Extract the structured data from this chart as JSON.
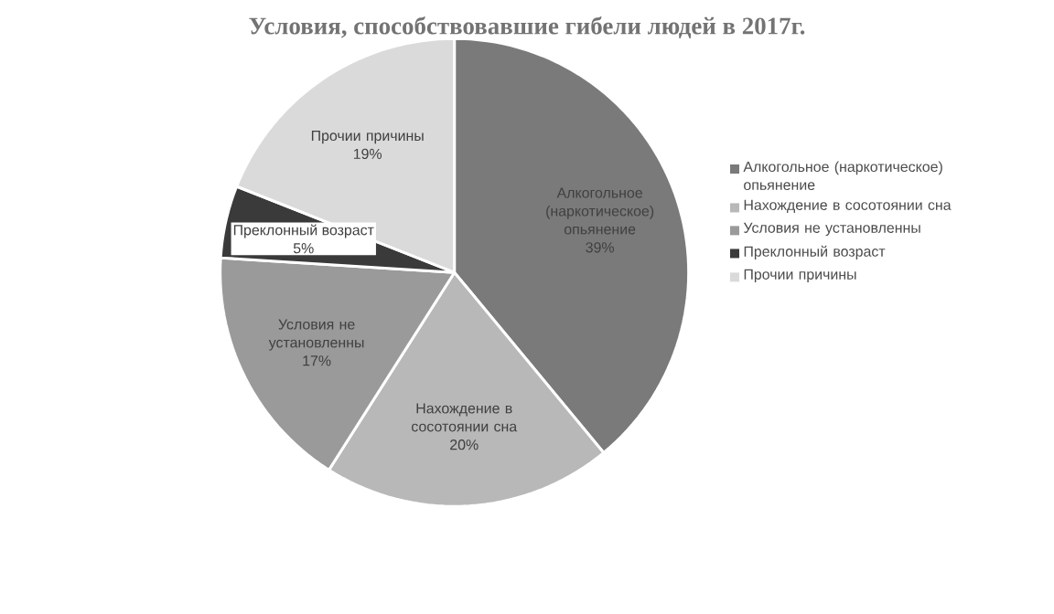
{
  "chart_data": {
    "type": "pie",
    "title": "Условия, способствовавшие гибели людей  в 2017г.",
    "categories": [
      "Алкогольное (наркотическое) опьянение",
      "Нахождение в сосотоянии сна",
      "Условия не установленны",
      "Преклонный возраст",
      "Прочии причины"
    ],
    "values": [
      39,
      20,
      17,
      5,
      19
    ],
    "value_labels": [
      "39%",
      "20%",
      "17%",
      "5%",
      "19%"
    ],
    "colors": [
      "#7a7a7a",
      "#b8b8b8",
      "#9a9a9a",
      "#3a3a3a",
      "#dadada"
    ],
    "legend": "right"
  }
}
